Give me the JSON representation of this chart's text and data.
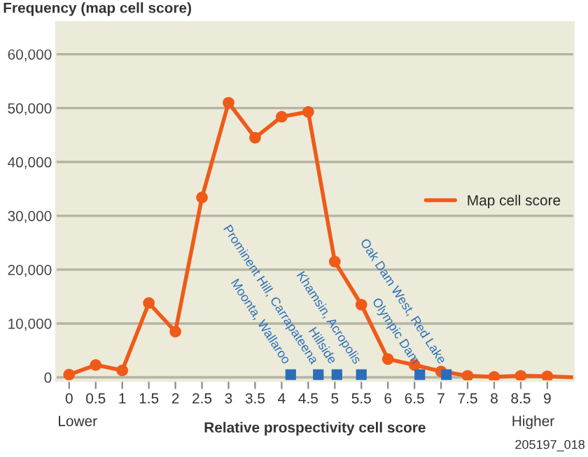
{
  "chart_data": {
    "type": "line",
    "ylabel": "Frequency (map cell score)",
    "xlabel": "Relative prospectivity cell score",
    "xlim": [
      -0.25,
      9.5
    ],
    "xticks": [
      0,
      0.5,
      1,
      1.5,
      2,
      2.5,
      3,
      3.5,
      4,
      4.5,
      5,
      5.5,
      6,
      6.5,
      7,
      7.5,
      8,
      8.5,
      9
    ],
    "ylim": [
      -700,
      66000
    ],
    "yticks": [
      {
        "value": 0,
        "label": "0"
      },
      {
        "value": 10000,
        "label": "10,000"
      },
      {
        "value": 20000,
        "label": "20,000"
      },
      {
        "value": 30000,
        "label": "30,000"
      },
      {
        "value": 40000,
        "label": "40,000"
      },
      {
        "value": 50000,
        "label": "50,000"
      },
      {
        "value": 60000,
        "label": "60,000"
      }
    ],
    "grid": "y",
    "legend": "right",
    "marker": "circle",
    "line_style": "solid",
    "series": [
      {
        "name": "Map cell score",
        "color": "#f05a19",
        "x": [
          0,
          0.5,
          1,
          1.5,
          2,
          2.5,
          3,
          3.5,
          4,
          4.5,
          5,
          5.5,
          6,
          6.5,
          7,
          7.5,
          8,
          8.5,
          9,
          9.5
        ],
        "values": [
          500,
          2300,
          1300,
          13800,
          8500,
          33400,
          51000,
          44500,
          48400,
          49300,
          21500,
          13500,
          3400,
          2300,
          1100,
          300,
          100,
          300,
          200,
          0
        ]
      },
      {
        "type": "scatter",
        "marker": "square",
        "color": "#2a6ebb",
        "x": [
          4.17,
          4.69,
          5.04,
          5.5,
          6.6,
          7.1
        ],
        "values": [
          500,
          500,
          500,
          500,
          500,
          500
        ]
      }
    ],
    "annotations": [
      {
        "text": "Moonta, Wallaroo",
        "x": 4.17,
        "y": 500
      },
      {
        "text": "Prominent Hill, Carrapateena",
        "x": 4.69,
        "y": 500
      },
      {
        "text": "Hillside",
        "x": 5.04,
        "y": 500
      },
      {
        "text": "Khamsin, Acropolis",
        "x": 5.5,
        "y": 500
      },
      {
        "text": "Olympic Dam",
        "x": 6.6,
        "y": 500
      },
      {
        "text": "Oak Dam West, Red Lake",
        "x": 7.1,
        "y": 500
      },
      "Lower",
      "Higher",
      "205197_018"
    ]
  }
}
